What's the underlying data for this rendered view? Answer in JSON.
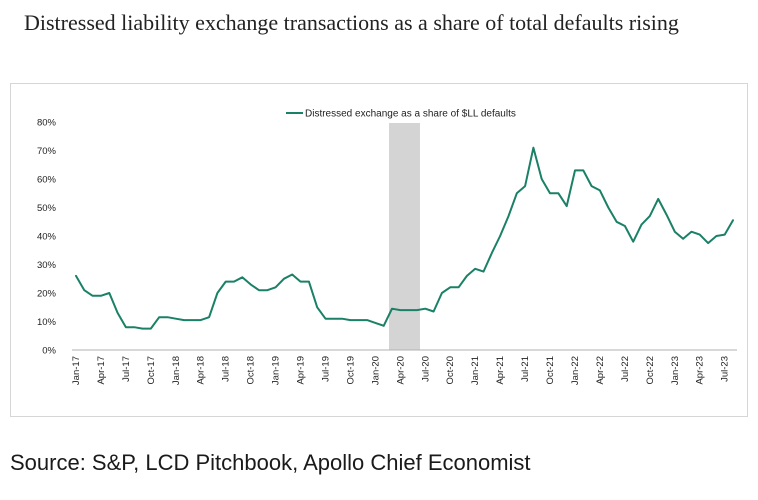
{
  "title": "Distressed liability exchange transactions as a share of total defaults rising",
  "source": "Source: S&P, LCD Pitchbook, Apollo Chief Economist",
  "colors": {
    "line": "#1a8066",
    "recession": "#d4d4d4",
    "axis": "#b0b0b0"
  },
  "chart_data": {
    "type": "line",
    "title": "Distressed liability exchange transactions as a share of total defaults rising",
    "xlabel": "",
    "ylabel": "",
    "ylim": [
      0,
      80
    ],
    "yticks": [
      0,
      10,
      20,
      30,
      40,
      50,
      60,
      70,
      80
    ],
    "ytick_labels": [
      "0%",
      "10%",
      "20%",
      "30%",
      "40%",
      "50%",
      "60%",
      "70%",
      "80%"
    ],
    "grid": false,
    "legend": "top-center",
    "xtick_labels": [
      "Jan-17",
      "Apr-17",
      "Jul-17",
      "Oct-17",
      "Jan-18",
      "Apr-18",
      "Jul-18",
      "Oct-18",
      "Jan-19",
      "Apr-19",
      "Jul-19",
      "Oct-19",
      "Jan-20",
      "Apr-20",
      "Jul-20",
      "Oct-20",
      "Jan-21",
      "Apr-21",
      "Jul-21",
      "Oct-21",
      "Jan-22",
      "Apr-22",
      "Jul-22",
      "Oct-22",
      "Jan-23",
      "Apr-23",
      "Jul-23"
    ],
    "recession_band": {
      "start_month_index": 38,
      "end_month_index": 41
    },
    "series": [
      {
        "name": "Distressed exchange as a share of $LL defaults",
        "values": [
          26,
          21,
          19,
          19,
          20,
          13,
          8,
          8,
          7.5,
          7.5,
          11.5,
          11.5,
          11,
          10.5,
          10.5,
          10.5,
          11.5,
          20,
          24,
          24,
          25.5,
          23,
          21,
          21,
          22,
          25,
          26.5,
          24,
          24,
          15,
          11,
          11,
          11,
          10.5,
          10.5,
          10.5,
          9.5,
          8.5,
          14.5,
          14,
          14,
          14,
          14.5,
          13.5,
          20,
          22,
          22,
          26,
          28.5,
          27.5,
          34,
          40,
          47,
          55,
          57.5,
          71,
          60,
          55,
          55,
          50.5,
          63,
          63,
          57.5,
          56,
          50,
          45,
          43.5,
          38,
          44,
          47,
          53,
          47.5,
          41.5,
          39,
          41.5,
          40.5,
          37.5,
          40,
          40.5,
          45.5
        ]
      }
    ]
  }
}
